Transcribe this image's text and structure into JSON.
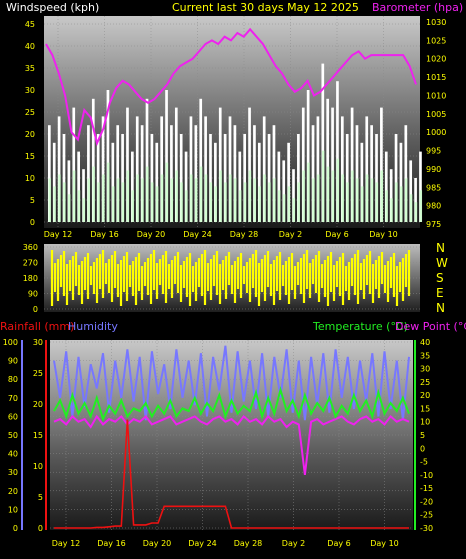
{
  "header": {
    "left": "Windspeed (kph)",
    "center": "Current last 30 days May 12 2025",
    "right": "Barometer (hpa)"
  },
  "colors": {
    "wind": "#ffffff",
    "gust": "#ffffff",
    "avg_wind": "#33dd33",
    "barometer": "#ee22ee",
    "direction": "#ffff00",
    "rain": "#ee1111",
    "humidity": "#7777ff",
    "temperature": "#22ee22",
    "dewpoint": "#ee22ee",
    "title_yellow": "#ffff00"
  },
  "x_ticks": [
    "Day 12",
    "Day 16",
    "Day 20",
    "Day 24",
    "Day 28",
    "Day 2",
    "Day 6",
    "Day 10"
  ],
  "chart_data": [
    {
      "type": "area",
      "id": "wind-barometer",
      "y_left_label": "Windspeed (kph)",
      "y_right_label": "Barometer (hpa)",
      "y_left_ticks": [
        "45",
        "40",
        "35",
        "30",
        "25",
        "20",
        "15",
        "10",
        "5",
        "0"
      ],
      "y_right_ticks": [
        "1030",
        "1025",
        "1020",
        "1015",
        "1010",
        "1005",
        "1000",
        "995",
        "990",
        "985",
        "980",
        "975"
      ],
      "ylim_left": [
        0,
        45
      ],
      "ylim_right": [
        975,
        1030
      ],
      "series": [
        {
          "name": "Windspeed (kph)",
          "values": [
            22,
            18,
            24,
            20,
            14,
            26,
            16,
            12,
            22,
            28,
            20,
            24,
            30,
            18,
            22,
            20,
            26,
            16,
            24,
            22,
            28,
            20,
            18,
            24,
            30,
            22,
            26,
            20,
            16,
            24,
            22,
            28,
            24,
            20,
            18,
            26,
            20,
            24,
            22,
            16,
            20,
            26,
            22,
            18,
            24,
            20,
            22,
            16,
            14,
            18,
            12,
            20,
            26,
            30,
            22,
            24,
            36,
            28,
            26,
            32,
            24,
            20,
            26,
            22,
            18,
            24,
            22,
            20,
            26,
            16,
            12,
            20,
            18,
            22,
            14,
            10,
            16
          ]
        },
        {
          "name": "Barometer (hpa)",
          "values": [
            1024,
            1021,
            1016,
            1010,
            1000,
            998,
            1006,
            1004,
            997,
            1001,
            1008,
            1012,
            1014,
            1013,
            1011,
            1009,
            1008,
            1009,
            1011,
            1013,
            1016,
            1018,
            1019,
            1020,
            1022,
            1024,
            1025,
            1024,
            1026,
            1025,
            1027,
            1026,
            1028,
            1026,
            1024,
            1021,
            1018,
            1016,
            1013,
            1011,
            1012,
            1014,
            1010,
            1011,
            1013,
            1015,
            1017,
            1019,
            1021,
            1022,
            1020,
            1021,
            1021,
            1021,
            1021,
            1021,
            1021,
            1018,
            1013
          ]
        }
      ]
    },
    {
      "type": "area",
      "id": "wind-direction",
      "y_ticks": [
        "360",
        "270",
        "180",
        "90",
        "0"
      ],
      "compass": [
        "N",
        "W",
        "S",
        "E",
        "N"
      ],
      "ylim": [
        0,
        360
      ]
    },
    {
      "type": "line",
      "id": "temp-humidity-rain",
      "header_left": "Rainfall (mm)",
      "header_left2": "Humidity",
      "header_right": "Temperature (°C)",
      "header_right2": "Dew Point (°C)",
      "humidity_ticks": [
        "100",
        "90",
        "80",
        "70",
        "60",
        "50",
        "40",
        "30",
        "20",
        "10",
        "0"
      ],
      "rain_ticks": [
        "30",
        "25",
        "20",
        "15",
        "10",
        "5",
        "0"
      ],
      "temp_ticks": [
        "40",
        "35",
        "30",
        "25",
        "20",
        "15",
        "10",
        "5",
        "0",
        "-5",
        "-10",
        "-15",
        "-20",
        "-25",
        "-30"
      ],
      "ylim_humidity": [
        0,
        100
      ],
      "ylim_rain": [
        0,
        30
      ],
      "ylim_temp": [
        -30,
        40
      ],
      "series": [
        {
          "name": "Humidity",
          "values": [
            90,
            70,
            95,
            60,
            92,
            65,
            88,
            75,
            94,
            62,
            90,
            70,
            96,
            68,
            92,
            58,
            95,
            72,
            88,
            64,
            96,
            70,
            90,
            66,
            94,
            60,
            92,
            74,
            98,
            62,
            95,
            68,
            90,
            64,
            94,
            60,
            92,
            70,
            96,
            62,
            90,
            58,
            92,
            66,
            94,
            62,
            96,
            70,
            92,
            64,
            90,
            68,
            94,
            60,
            95,
            64,
            90,
            58,
            92
          ]
        },
        {
          "name": "Temperature (°C)",
          "values": [
            14,
            18,
            12,
            20,
            13,
            17,
            12,
            19,
            11,
            16,
            13,
            18,
            12,
            15,
            14,
            17,
            12,
            16,
            13,
            18,
            12,
            15,
            14,
            19,
            13,
            17,
            14,
            20,
            12,
            18,
            13,
            16,
            14,
            21,
            12,
            19,
            13,
            22,
            14,
            18,
            12,
            20,
            13,
            17,
            14,
            19,
            12,
            16,
            13,
            20,
            14,
            18,
            12,
            21,
            13,
            17,
            14,
            19,
            13
          ]
        },
        {
          "name": "Dew Point (°C)",
          "values": [
            10,
            11,
            9,
            12,
            10,
            11,
            8,
            12,
            9,
            11,
            10,
            12,
            9,
            11,
            10,
            12,
            9,
            10,
            11,
            12,
            9,
            10,
            11,
            12,
            10,
            9,
            11,
            12,
            10,
            11,
            9,
            12,
            10,
            11,
            9,
            12,
            10,
            11,
            8,
            10,
            9,
            -10,
            10,
            11,
            9,
            10,
            11,
            12,
            10,
            9,
            11,
            12,
            10,
            11,
            9,
            12,
            10,
            11,
            10
          ]
        },
        {
          "name": "Rainfall (mm)",
          "values": [
            0,
            0,
            0,
            0,
            0,
            0,
            0,
            0.1,
            0.1,
            0.2,
            0.3,
            0.3,
            17.5,
            0.5,
            0.5,
            0.5,
            0.8,
            0.8,
            3.5,
            3.5,
            3.5,
            3.5,
            3.5,
            3.5,
            3.5,
            3.5,
            3.5,
            3.5,
            3.5,
            0,
            0,
            0,
            0,
            0,
            0,
            0,
            0,
            0,
            0,
            0,
            0,
            0,
            0,
            0,
            0,
            0,
            0,
            0,
            0,
            0,
            0,
            0,
            0,
            0,
            0,
            0,
            0,
            0,
            0
          ]
        }
      ]
    }
  ]
}
